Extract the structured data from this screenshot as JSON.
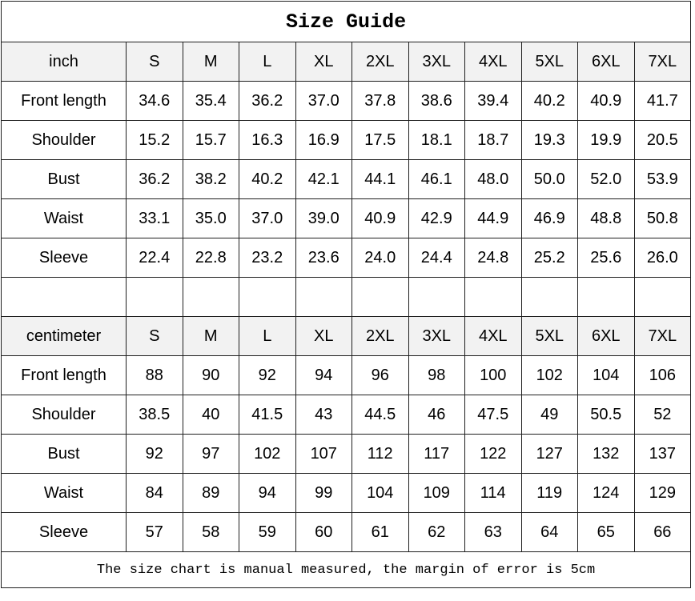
{
  "title": "Size Guide",
  "footer_note": "The size chart is manual measured, the margin of error is 5cm",
  "colors": {
    "background": "#ffffff",
    "header_row_bg": "#f2f2f2",
    "border": "#1f1f1f",
    "text": "#000000"
  },
  "chart_data": [
    {
      "type": "table",
      "title": "Size Guide",
      "unit_label": "inch",
      "sizes": [
        "S",
        "M",
        "L",
        "XL",
        "2XL",
        "3XL",
        "4XL",
        "5XL",
        "6XL",
        "7XL"
      ],
      "rows": [
        {
          "label": "Front length",
          "values": [
            "34.6",
            "35.4",
            "36.2",
            "37.0",
            "37.8",
            "38.6",
            "39.4",
            "40.2",
            "40.9",
            "41.7"
          ]
        },
        {
          "label": "Shoulder",
          "values": [
            "15.2",
            "15.7",
            "16.3",
            "16.9",
            "17.5",
            "18.1",
            "18.7",
            "19.3",
            "19.9",
            "20.5"
          ]
        },
        {
          "label": "Bust",
          "values": [
            "36.2",
            "38.2",
            "40.2",
            "42.1",
            "44.1",
            "46.1",
            "48.0",
            "50.0",
            "52.0",
            "53.9"
          ]
        },
        {
          "label": "Waist",
          "values": [
            "33.1",
            "35.0",
            "37.0",
            "39.0",
            "40.9",
            "42.9",
            "44.9",
            "46.9",
            "48.8",
            "50.8"
          ]
        },
        {
          "label": "Sleeve",
          "values": [
            "22.4",
            "22.8",
            "23.2",
            "23.6",
            "24.0",
            "24.4",
            "24.8",
            "25.2",
            "25.6",
            "26.0"
          ]
        }
      ]
    },
    {
      "type": "table",
      "title": "Size Guide",
      "unit_label": "centimeter",
      "sizes": [
        "S",
        "M",
        "L",
        "XL",
        "2XL",
        "3XL",
        "4XL",
        "5XL",
        "6XL",
        "7XL"
      ],
      "rows": [
        {
          "label": "Front length",
          "values": [
            "88",
            "90",
            "92",
            "94",
            "96",
            "98",
            "100",
            "102",
            "104",
            "106"
          ]
        },
        {
          "label": "Shoulder",
          "values": [
            "38.5",
            "40",
            "41.5",
            "43",
            "44.5",
            "46",
            "47.5",
            "49",
            "50.5",
            "52"
          ]
        },
        {
          "label": "Bust",
          "values": [
            "92",
            "97",
            "102",
            "107",
            "112",
            "117",
            "122",
            "127",
            "132",
            "137"
          ]
        },
        {
          "label": "Waist",
          "values": [
            "84",
            "89",
            "94",
            "99",
            "104",
            "109",
            "114",
            "119",
            "124",
            "129"
          ]
        },
        {
          "label": "Sleeve",
          "values": [
            "57",
            "58",
            "59",
            "60",
            "61",
            "62",
            "63",
            "64",
            "65",
            "66"
          ]
        }
      ]
    }
  ]
}
